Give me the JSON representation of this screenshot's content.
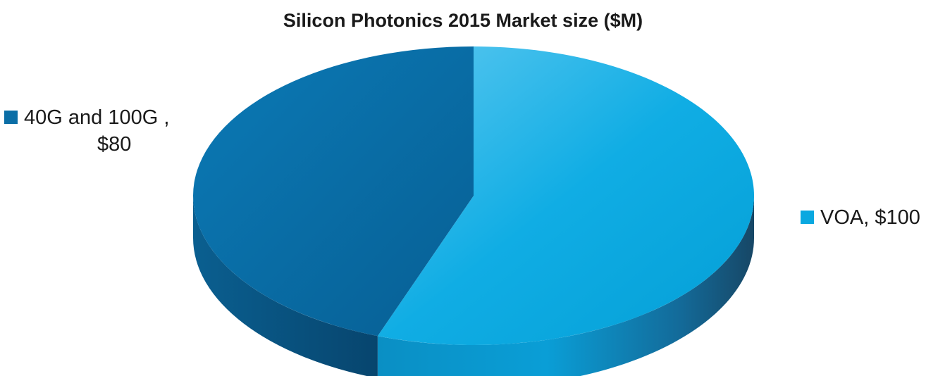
{
  "chart_data": {
    "type": "pie",
    "title": "Silicon Photonics 2015 Market size ($M)",
    "units": "$M",
    "slices": [
      {
        "label": "VOA",
        "value": 100,
        "value_label": "$100",
        "color": "#0aa8e0"
      },
      {
        "label": "40G and 100G",
        "value": 80,
        "value_label": "$80",
        "color": "#0b6ea6"
      }
    ],
    "legend_labels": {
      "left_line1": "40G and 100G ,",
      "left_line2": "$80",
      "right": "VOA,  $100"
    },
    "style": "3d-pie",
    "legend": "data labels beside slices"
  }
}
